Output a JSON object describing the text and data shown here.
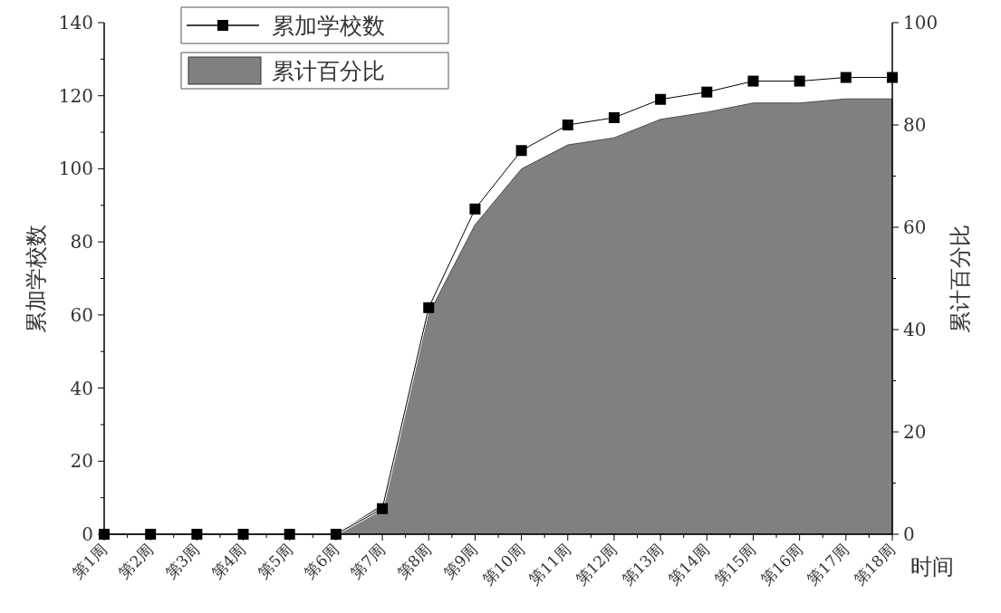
{
  "chart_data": {
    "type": "line",
    "xlabel": "时间",
    "ylabel": "累加学校数",
    "y2label": "累计百分比",
    "categories": [
      "第1周",
      "第2周",
      "第3周",
      "第4周",
      "第5周",
      "第6周",
      "第7周",
      "第8周",
      "第9周",
      "第10周",
      "第11周",
      "第12周",
      "第13周",
      "第14周",
      "第15周",
      "第16周",
      "第17周",
      "第18周"
    ],
    "ylim": [
      0,
      140
    ],
    "yticks": [
      0,
      20,
      40,
      60,
      80,
      100,
      120,
      140
    ],
    "y2lim": [
      0,
      100
    ],
    "y2ticks": [
      0,
      20,
      40,
      60,
      80,
      100
    ],
    "legend": "top left",
    "series": [
      {
        "name": "累加学校数",
        "marker": "square",
        "color": "#000000",
        "values": [
          0,
          0,
          0,
          0,
          0,
          0,
          7,
          62,
          89,
          105,
          112,
          114,
          119,
          121,
          124,
          124,
          125,
          125
        ]
      },
      {
        "name": "累计百分比",
        "type": "area",
        "axis": "y2",
        "color": "#808080",
        "values": [
          0,
          0,
          0,
          0,
          0,
          0,
          5.7,
          43,
          60.5,
          71.4,
          76.1,
          77.5,
          81.1,
          82.5,
          84.3,
          84.3,
          85.1,
          85.1
        ]
      }
    ]
  }
}
